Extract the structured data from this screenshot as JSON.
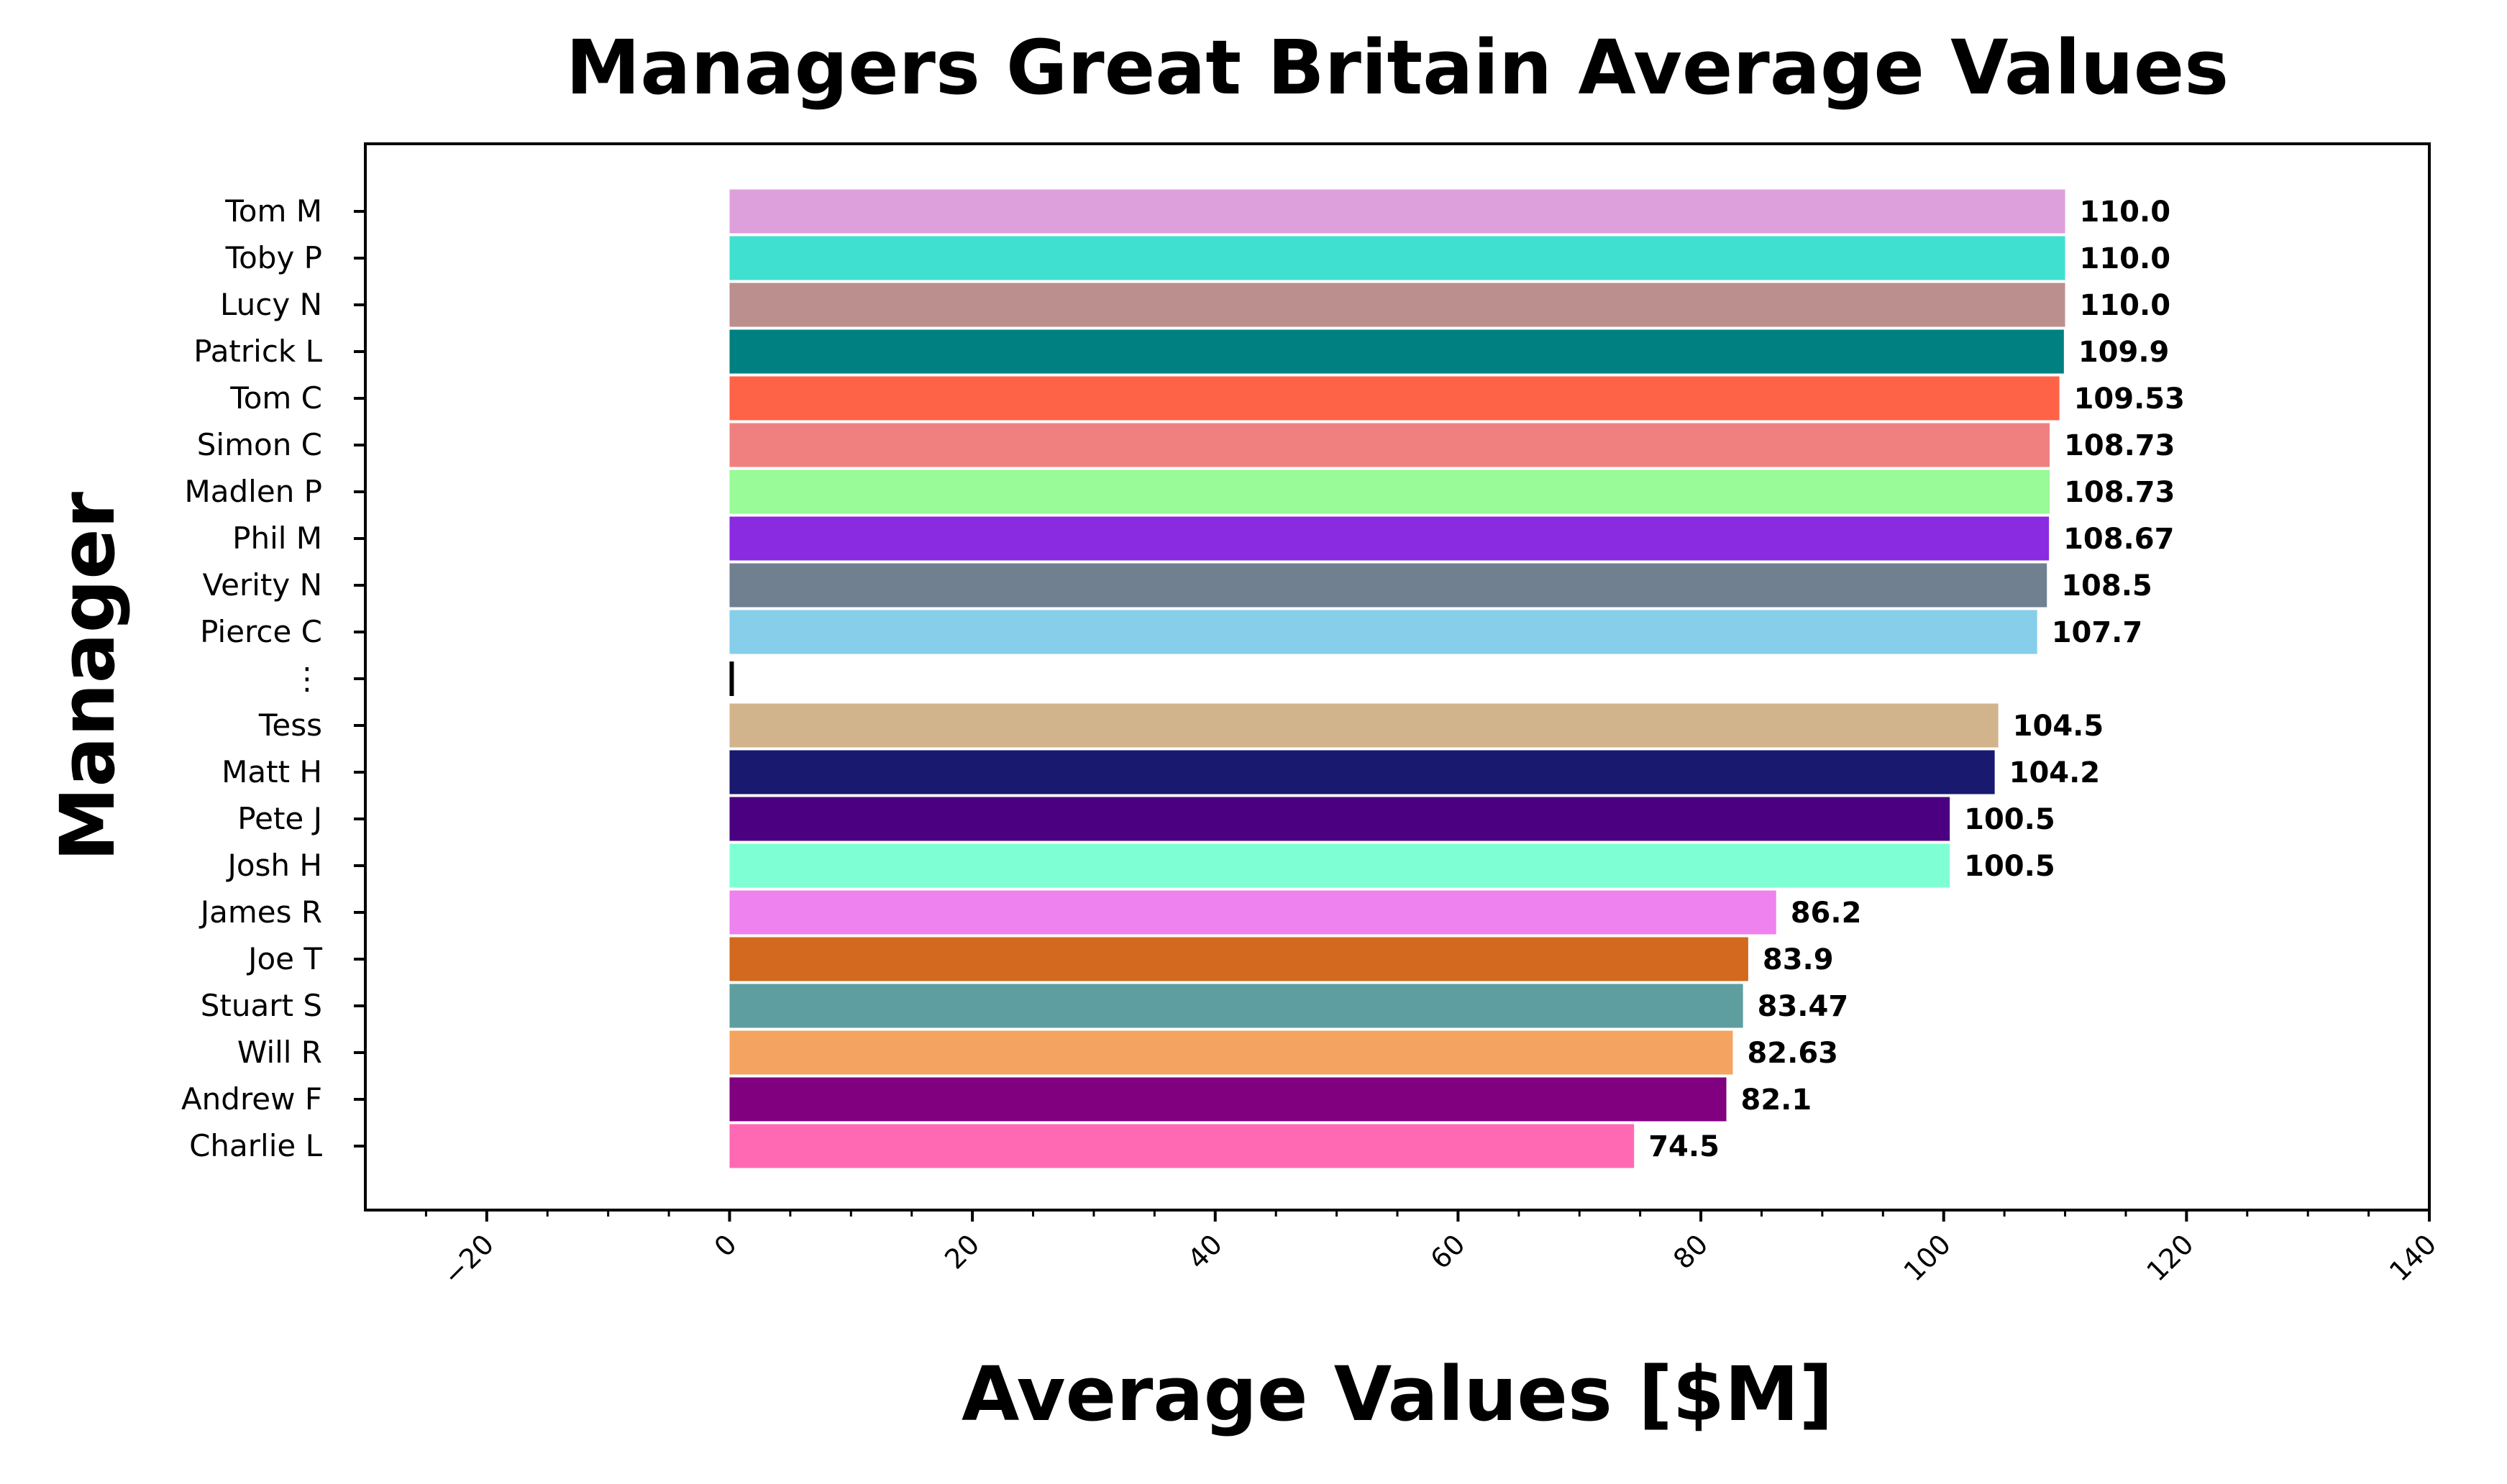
{
  "chart_data": {
    "type": "bar",
    "orientation": "horizontal",
    "title": "Managers Great Britain Average Values",
    "xlabel": "Average Values [$M]",
    "ylabel": "Manager",
    "xlim": [
      -30,
      140
    ],
    "xticks": [
      -20,
      0,
      20,
      40,
      60,
      80,
      100,
      120,
      140
    ],
    "xtick_labels": [
      "−20",
      "0",
      "20",
      "40",
      "60",
      "80",
      "100",
      "120",
      "140"
    ],
    "grid": false,
    "legend": "none",
    "categories": [
      "Tom M",
      "Toby P",
      "Lucy N",
      "Patrick L",
      "Tom C",
      "Simon C",
      "Madlen P",
      "Phil M",
      "Verity N",
      "Pierce C",
      "⋮",
      "Tess",
      "Matt H",
      "Pete J",
      "Josh H",
      "James R",
      "Joe T",
      "Stuart S",
      "Will R",
      "Andrew F",
      "Charlie L"
    ],
    "values": [
      110.0,
      110.0,
      110.0,
      109.9,
      109.53,
      108.73,
      108.73,
      108.67,
      108.5,
      107.7,
      0.3,
      104.5,
      104.2,
      100.5,
      100.5,
      86.2,
      83.9,
      83.47,
      82.63,
      82.1,
      74.5
    ],
    "value_labels": [
      "110.0",
      "110.0",
      "110.0",
      "109.9",
      "109.53",
      "108.73",
      "108.73",
      "108.67",
      "108.5",
      "107.7",
      "",
      "104.5",
      "104.2",
      "100.5",
      "100.5",
      "86.2",
      "83.9",
      "83.47",
      "82.63",
      "82.1",
      "74.5"
    ],
    "colors": [
      "#DDA0DD",
      "#40E0D0",
      "#BC8F8F",
      "#008080",
      "#FF6347",
      "#F08080",
      "#98FB98",
      "#8A2BE2",
      "#708090",
      "#87CEEB",
      "#000000",
      "#D2B48C",
      "#191970",
      "#4B0082",
      "#7FFFD4",
      "#EE82EE",
      "#D2691E",
      "#5F9EA0",
      "#F4A460",
      "#800080",
      "#FF69B4"
    ]
  }
}
